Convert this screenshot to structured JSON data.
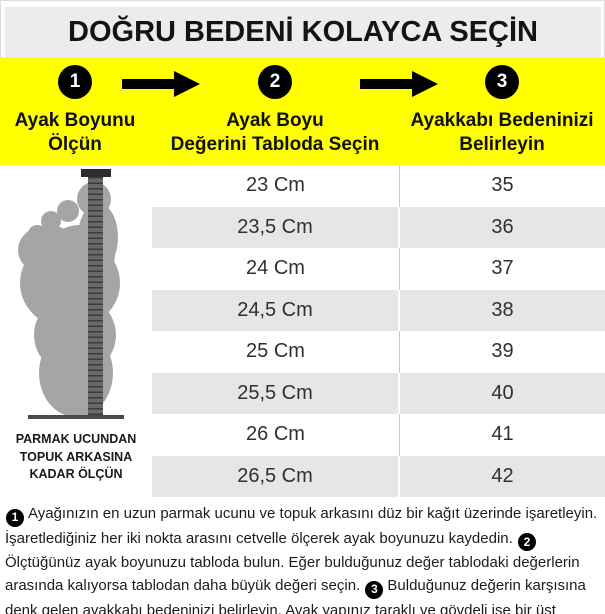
{
  "title": "DOĞRU BEDENİ KOLAYCA SEÇİN",
  "colors": {
    "accent_yellow": "#FFFF00",
    "step_circle_black": "#000000",
    "row_alt_gray": "#e7e5e5",
    "title_bar_gray": "#ececec",
    "foot_gray": "#a5a5a7",
    "ruler_gray": "#69696b",
    "ruler_tick_dark": "#3d3d3f",
    "ruler_cap_dark": "#2d2d2d",
    "baseline_dark": "#4a4a4a"
  },
  "steps": [
    {
      "number": "1",
      "lines": [
        "Ayak Boyunu",
        "Ölçün"
      ]
    },
    {
      "number": "2",
      "lines": [
        "Ayak Boyu",
        "Değerini Tabloda Seçin"
      ]
    },
    {
      "number": "3",
      "lines": [
        "Ayakkabı Bedeninizi",
        "Belirleyin"
      ]
    }
  ],
  "measure_caption": "PARMAK UCUNDAN TOPUK ARKASINA KADAR ÖLÇÜN",
  "size_table": {
    "rows": [
      {
        "cm": "23 Cm",
        "size": "35"
      },
      {
        "cm": "23,5 Cm",
        "size": "36"
      },
      {
        "cm": "24 Cm",
        "size": "37"
      },
      {
        "cm": "24,5 Cm",
        "size": "38"
      },
      {
        "cm": "25 Cm",
        "size": "39"
      },
      {
        "cm": "25,5 Cm",
        "size": "40"
      },
      {
        "cm": "26 Cm",
        "size": "41"
      },
      {
        "cm": "26,5 Cm",
        "size": "42"
      }
    ]
  },
  "instructions": {
    "segments": [
      {
        "badge": "1"
      },
      {
        "text": "Ayağınızın en uzun parmak ucunu ve topuk arkasını düz bir kağıt üzerinde işaretleyin. İşaretlediğiniz her iki nokta arasını cetvelle ölçerek ayak boyunuzu kaydedin."
      },
      {
        "badge": "2"
      },
      {
        "text": "Ölçtüğünüz ayak boyunuzu tabloda bulun. Eğer bulduğunuz değer tablodaki değerlerin arasında kalıyorsa tablodan daha büyük değeri seçin."
      },
      {
        "badge": "3"
      },
      {
        "text": "Bulduğunuz değerin karşısına denk gelen ayakkabı bedeninizi belirleyin. Ayak yapınız taraklı ve gövdeli ise bir üst bedeni tercih etmenizi öneririz."
      }
    ]
  }
}
